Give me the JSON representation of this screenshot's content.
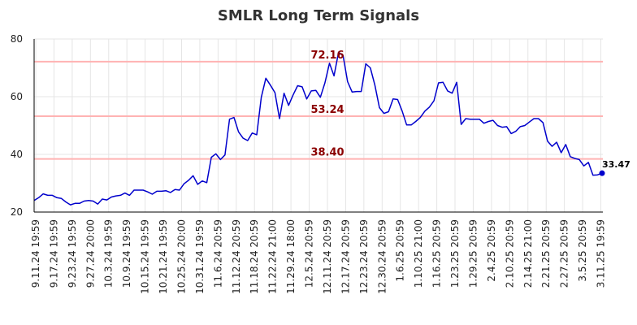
{
  "chart_data": {
    "type": "line",
    "title": "SMLR Long Term Signals",
    "xlabel": "",
    "ylabel": "",
    "ylim": [
      20,
      80
    ],
    "yticks": [
      20,
      40,
      60,
      80
    ],
    "grid": true,
    "x_tick_labels": [
      "9.11.24 19:59",
      "9.17.24 19:59",
      "9.23.24 19:59",
      "9.27.24 20:00",
      "10.3.24 19:59",
      "10.9.24 19:59",
      "10.15.24 19:59",
      "10.21.24 19:59",
      "10.25.24 20:00",
      "10.31.24 19:59",
      "11.6.24 20:59",
      "11.12.24 20:59",
      "11.18.24 20:59",
      "11.22.24 21:00",
      "11.29.24 18:00",
      "12.5.24 20:59",
      "12.11.24 20:59",
      "12.17.24 20:59",
      "12.23.24 20:59",
      "12.30.24 20:59",
      "1.6.25 20:59",
      "1.10.25 21:00",
      "1.16.25 20:59",
      "1.23.25 20:59",
      "1.29.25 20:59",
      "2.4.25 20:59",
      "2.10.25 20:59",
      "2.14.25 21:00",
      "2.21.25 20:59",
      "2.27.25 20:59",
      "3.5.25 20:59",
      "3.11.25 19:59"
    ],
    "series": [
      {
        "color": "#0000cc",
        "values": [
          24.0,
          25.0,
          26.3,
          25.8,
          25.8,
          25.0,
          24.7,
          23.5,
          22.5,
          23.0,
          23.0,
          23.8,
          24.0,
          23.8,
          22.8,
          24.5,
          24.2,
          25.2,
          25.6,
          25.8,
          26.6,
          25.8,
          27.6,
          27.6,
          27.6,
          27.0,
          26.2,
          27.2,
          27.2,
          27.4,
          26.8,
          27.8,
          27.6,
          29.8,
          31.0,
          32.6,
          29.6,
          30.8,
          30.2,
          39.0,
          40.2,
          38.2,
          39.8,
          52.2,
          52.8,
          47.8,
          45.6,
          44.8,
          47.4,
          46.8,
          59.8,
          66.4,
          64.0,
          61.4,
          52.4,
          61.2,
          57.0,
          60.6,
          63.8,
          63.4,
          59.2,
          62.0,
          62.2,
          59.8,
          64.8,
          71.6,
          67.2,
          75.4,
          74.2,
          65.2,
          61.6,
          61.8,
          61.8,
          71.4,
          70.0,
          64.0,
          56.2,
          54.2,
          54.8,
          59.2,
          59.0,
          55.0,
          50.2,
          50.2,
          51.4,
          52.8,
          55.0,
          56.4,
          58.6,
          64.8,
          65.0,
          62.0,
          61.2,
          65.0,
          50.4,
          52.4,
          52.2,
          52.2,
          52.2,
          50.8,
          51.4,
          51.8,
          50.0,
          49.4,
          49.6,
          47.2,
          48.0,
          49.6,
          50.0,
          51.2,
          52.4,
          52.4,
          51.0,
          44.6,
          42.8,
          44.2,
          40.6,
          43.4,
          39.2,
          38.6,
          38.2,
          36.0,
          37.2,
          32.8,
          32.9,
          33.47
        ]
      }
    ],
    "levels": [
      {
        "value": 72.16,
        "label": "72.16"
      },
      {
        "value": 53.24,
        "label": "53.24"
      },
      {
        "value": 38.4,
        "label": "38.40"
      }
    ],
    "last_value": {
      "value": 33.47,
      "label": "33.47"
    },
    "colors": {
      "line": "#0000cc",
      "level_line": "#ffb3b3",
      "level_label": "#8b0000",
      "grid": "#e5e5e5",
      "axis": "#000000"
    }
  }
}
